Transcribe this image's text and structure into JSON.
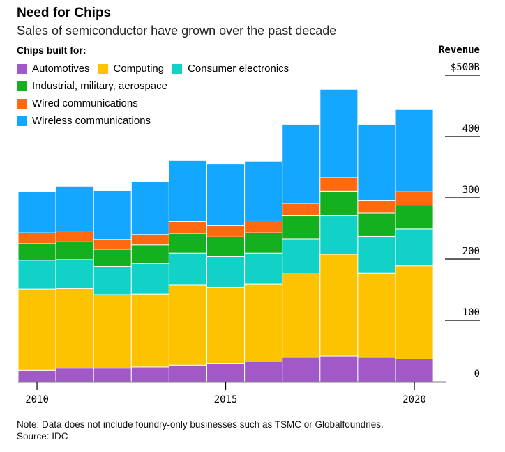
{
  "chart_data": {
    "type": "bar",
    "stacked": true,
    "title": "Need for Chips",
    "subtitle": "Sales of semiconductor have grown over the past decade",
    "legend_title": "Chips built for:",
    "ylabel": "Revenue",
    "ylim": [
      0,
      500
    ],
    "y_ticks": [
      {
        "value": 500,
        "label": "$500B"
      },
      {
        "value": 400,
        "label": "400"
      },
      {
        "value": 300,
        "label": "300"
      },
      {
        "value": 200,
        "label": "200"
      },
      {
        "value": 100,
        "label": "100"
      },
      {
        "value": 0,
        "label": "0"
      }
    ],
    "x_ticks": [
      {
        "value": 2010,
        "label": "2010"
      },
      {
        "value": 2015,
        "label": "2015"
      },
      {
        "value": 2020,
        "label": "2020"
      }
    ],
    "categories": [
      2010,
      2011,
      2012,
      2013,
      2014,
      2015,
      2016,
      2017,
      2018,
      2019,
      2020
    ],
    "series": [
      {
        "name": "Automotives",
        "color": "#a259c8",
        "values": [
          19,
          22,
          22,
          24,
          27,
          30,
          33,
          40,
          42,
          40,
          37
        ]
      },
      {
        "name": "Computing",
        "color": "#fdc300",
        "values": [
          132,
          130,
          120,
          119,
          131,
          124,
          126,
          136,
          166,
          137,
          152
        ]
      },
      {
        "name": "Consumer electronics",
        "color": "#12d2c7",
        "values": [
          47,
          47,
          46,
          50,
          52,
          50,
          51,
          57,
          63,
          60,
          60
        ]
      },
      {
        "name": "Industrial, military, aerospace",
        "color": "#13b01f",
        "values": [
          27,
          29,
          28,
          30,
          32,
          32,
          33,
          38,
          40,
          38,
          39
        ]
      },
      {
        "name": "Wired communications",
        "color": "#ff6a10",
        "values": [
          18,
          18,
          16,
          17,
          19,
          19,
          19,
          20,
          22,
          21,
          22
        ]
      },
      {
        "name": "Wireless communications",
        "color": "#14a7ff",
        "values": [
          67,
          73,
          80,
          86,
          100,
          100,
          98,
          129,
          144,
          124,
          134
        ]
      }
    ]
  },
  "note": {
    "line1": "Note: Data does not include foundry-only businesses such as TSMC or Globalfoundries.",
    "line2": "Source: IDC"
  }
}
